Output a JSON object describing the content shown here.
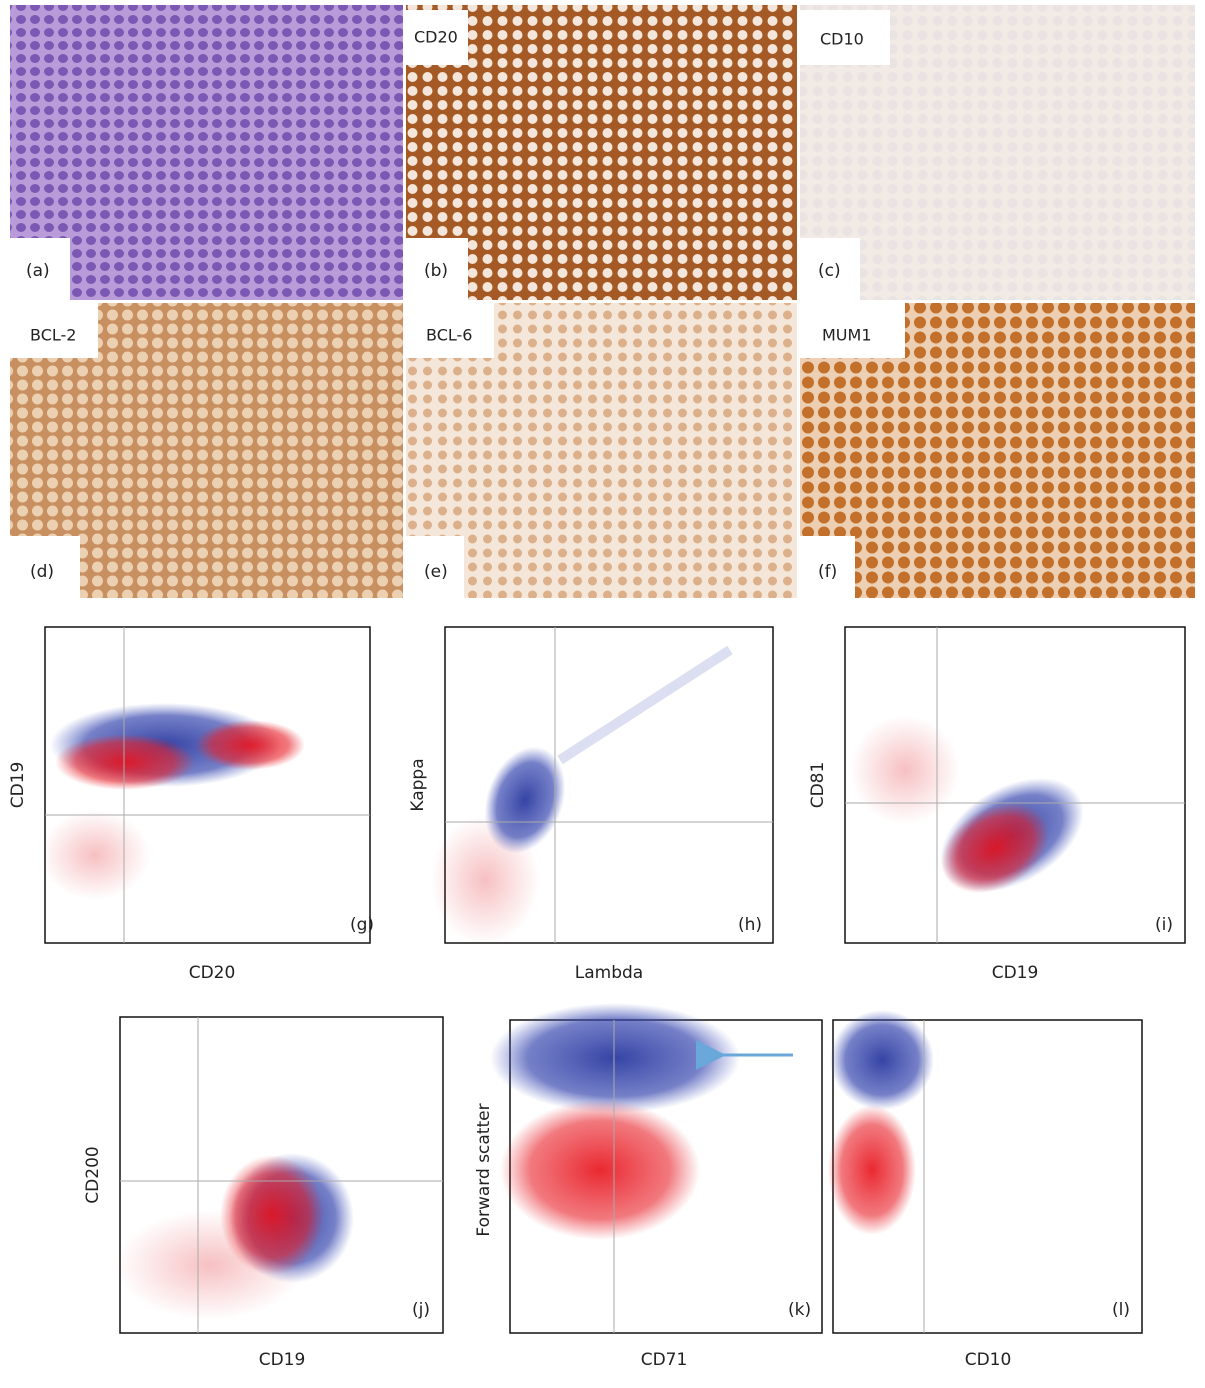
{
  "histology": [
    {
      "letter": "(a)"
    },
    {
      "stain": "CD20",
      "letter": "(b)"
    },
    {
      "stain": "CD10",
      "letter": "(c)"
    },
    {
      "stain": "BCL-2",
      "letter": "(d)"
    },
    {
      "stain": "BCL-6",
      "letter": "(e)"
    },
    {
      "stain": "MUM1",
      "letter": "(f)"
    }
  ],
  "flow": [
    {
      "x_label": "CD20",
      "y_label": "CD19",
      "letter": "(g)"
    },
    {
      "x_label": "Lambda",
      "y_label": "Kappa",
      "letter": "(h)"
    },
    {
      "x_label": "CD19",
      "y_label": "CD81",
      "letter": "(i)"
    },
    {
      "x_label": "CD19",
      "y_label": "CD200",
      "letter": "(j)"
    },
    {
      "x_label": "CD71",
      "y_label": "Forward scatter",
      "letter": "(k)"
    },
    {
      "x_label": "CD10",
      "letter": "(l)"
    }
  ]
}
